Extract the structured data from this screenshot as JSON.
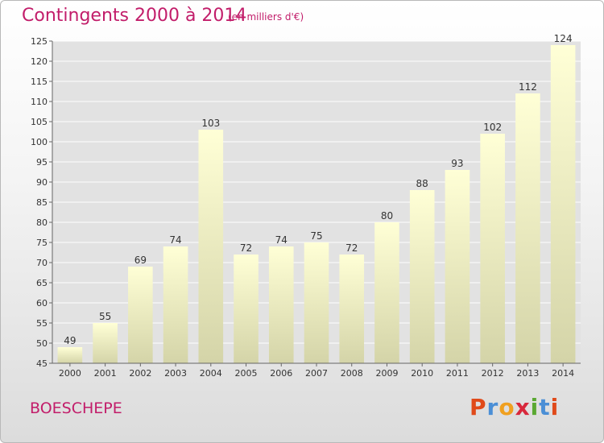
{
  "header": {
    "title": "Contingents 2000 à 2014",
    "subtitle": "(en milliers d'€)"
  },
  "footer": {
    "commune": "BOESCHEPE",
    "logo_text": "Proxiti"
  },
  "colors": {
    "title": "#c21d6a",
    "bar_light": "#ffffd6",
    "bar_dark": "#d4d4a8",
    "grid": "#ffffff",
    "plot_background": "#e2e2e2",
    "logo_letters": [
      "#e04a1a",
      "#4b8fd6",
      "#f0a020",
      "#d8283c",
      "#5aa832",
      "#4b8fd6",
      "#e04a1a"
    ]
  },
  "chart_data": {
    "type": "bar",
    "title": "Contingents 2000 à 2014",
    "subtitle": "(en milliers d'€)",
    "xlabel": "",
    "ylabel": "",
    "categories": [
      "2000",
      "2001",
      "2002",
      "2003",
      "2004",
      "2005",
      "2006",
      "2007",
      "2008",
      "2009",
      "2010",
      "2011",
      "2012",
      "2013",
      "2014"
    ],
    "values": [
      49,
      55,
      69,
      74,
      103,
      72,
      74,
      75,
      72,
      80,
      88,
      93,
      102,
      112,
      124
    ],
    "ylim": [
      45,
      125
    ],
    "yticks": [
      45,
      50,
      55,
      60,
      65,
      70,
      75,
      80,
      85,
      90,
      95,
      100,
      105,
      110,
      115,
      120,
      125
    ],
    "grid": true,
    "data_labels": true
  }
}
